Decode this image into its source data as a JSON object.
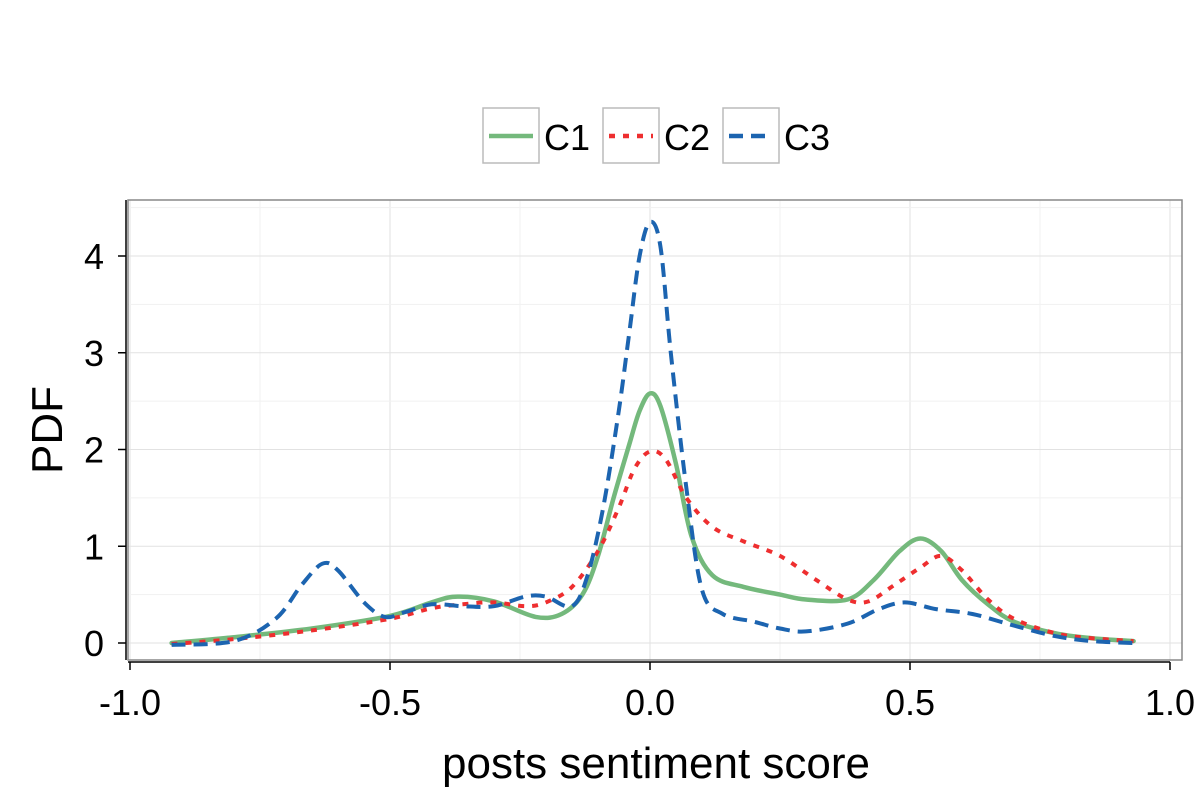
{
  "chart_data": {
    "type": "line",
    "title": "",
    "xlabel": "posts sentiment score",
    "ylabel": "PDF",
    "xlim": [
      -1.0,
      1.0
    ],
    "ylim": [
      -0.2,
      4.6
    ],
    "xticks": [
      -1.0,
      -0.5,
      0.0,
      0.5,
      1.0
    ],
    "xtick_labels": [
      "-1.0",
      "-0.5",
      "0.0",
      "0.5",
      "1.0"
    ],
    "yticks": [
      0,
      1,
      2,
      3,
      4
    ],
    "ytick_labels": [
      "0",
      "1",
      "2",
      "3",
      "4"
    ],
    "grid": true,
    "legend_position": "top",
    "series": [
      {
        "name": "C1",
        "color": "#74b97c",
        "style": "solid",
        "points": [
          [
            -0.92,
            0.0
          ],
          [
            -0.8,
            0.06
          ],
          [
            -0.65,
            0.15
          ],
          [
            -0.5,
            0.28
          ],
          [
            -0.42,
            0.42
          ],
          [
            -0.37,
            0.48
          ],
          [
            -0.3,
            0.43
          ],
          [
            -0.22,
            0.27
          ],
          [
            -0.17,
            0.3
          ],
          [
            -0.13,
            0.5
          ],
          [
            -0.1,
            0.9
          ],
          [
            -0.07,
            1.5
          ],
          [
            -0.04,
            2.05
          ],
          [
            -0.02,
            2.4
          ],
          [
            0.0,
            2.58
          ],
          [
            0.02,
            2.45
          ],
          [
            0.05,
            1.85
          ],
          [
            0.08,
            1.1
          ],
          [
            0.12,
            0.7
          ],
          [
            0.18,
            0.58
          ],
          [
            0.25,
            0.5
          ],
          [
            0.3,
            0.45
          ],
          [
            0.38,
            0.45
          ],
          [
            0.43,
            0.65
          ],
          [
            0.48,
            0.95
          ],
          [
            0.52,
            1.08
          ],
          [
            0.56,
            0.95
          ],
          [
            0.6,
            0.65
          ],
          [
            0.65,
            0.4
          ],
          [
            0.7,
            0.22
          ],
          [
            0.78,
            0.1
          ],
          [
            0.85,
            0.05
          ],
          [
            0.93,
            0.02
          ]
        ]
      },
      {
        "name": "C2",
        "color": "#ee2e2f",
        "style": "dotted",
        "points": [
          [
            -0.92,
            -0.01
          ],
          [
            -0.8,
            0.04
          ],
          [
            -0.65,
            0.13
          ],
          [
            -0.5,
            0.25
          ],
          [
            -0.42,
            0.36
          ],
          [
            -0.36,
            0.4
          ],
          [
            -0.3,
            0.42
          ],
          [
            -0.24,
            0.38
          ],
          [
            -0.2,
            0.42
          ],
          [
            -0.15,
            0.58
          ],
          [
            -0.1,
            0.95
          ],
          [
            -0.06,
            1.4
          ],
          [
            -0.03,
            1.8
          ],
          [
            0.0,
            1.98
          ],
          [
            0.03,
            1.9
          ],
          [
            0.07,
            1.5
          ],
          [
            0.12,
            1.2
          ],
          [
            0.18,
            1.05
          ],
          [
            0.25,
            0.9
          ],
          [
            0.32,
            0.65
          ],
          [
            0.38,
            0.45
          ],
          [
            0.42,
            0.43
          ],
          [
            0.47,
            0.6
          ],
          [
            0.52,
            0.78
          ],
          [
            0.56,
            0.9
          ],
          [
            0.6,
            0.75
          ],
          [
            0.65,
            0.45
          ],
          [
            0.7,
            0.25
          ],
          [
            0.78,
            0.1
          ],
          [
            0.85,
            0.05
          ],
          [
            0.93,
            0.02
          ]
        ]
      },
      {
        "name": "C3",
        "color": "#1c64b0",
        "style": "dashed",
        "points": [
          [
            -0.92,
            -0.02
          ],
          [
            -0.8,
            0.02
          ],
          [
            -0.72,
            0.25
          ],
          [
            -0.67,
            0.6
          ],
          [
            -0.63,
            0.82
          ],
          [
            -0.6,
            0.75
          ],
          [
            -0.55,
            0.42
          ],
          [
            -0.51,
            0.27
          ],
          [
            -0.47,
            0.32
          ],
          [
            -0.42,
            0.4
          ],
          [
            -0.36,
            0.38
          ],
          [
            -0.3,
            0.38
          ],
          [
            -0.24,
            0.48
          ],
          [
            -0.2,
            0.48
          ],
          [
            -0.15,
            0.38
          ],
          [
            -0.12,
            0.7
          ],
          [
            -0.09,
            1.4
          ],
          [
            -0.06,
            2.4
          ],
          [
            -0.04,
            3.2
          ],
          [
            -0.02,
            4.0
          ],
          [
            0.0,
            4.35
          ],
          [
            0.02,
            4.1
          ],
          [
            0.04,
            3.0
          ],
          [
            0.07,
            1.6
          ],
          [
            0.1,
            0.55
          ],
          [
            0.14,
            0.3
          ],
          [
            0.2,
            0.22
          ],
          [
            0.25,
            0.15
          ],
          [
            0.3,
            0.12
          ],
          [
            0.38,
            0.2
          ],
          [
            0.44,
            0.35
          ],
          [
            0.49,
            0.42
          ],
          [
            0.55,
            0.35
          ],
          [
            0.62,
            0.3
          ],
          [
            0.7,
            0.18
          ],
          [
            0.78,
            0.07
          ],
          [
            0.85,
            0.02
          ],
          [
            0.93,
            0.0
          ]
        ]
      }
    ]
  },
  "colors": {
    "panel_border": "#888888",
    "grid_major": "#e2e2e2",
    "grid_minor": "#f1f1f1",
    "legend_border": "#bbbbbb"
  }
}
